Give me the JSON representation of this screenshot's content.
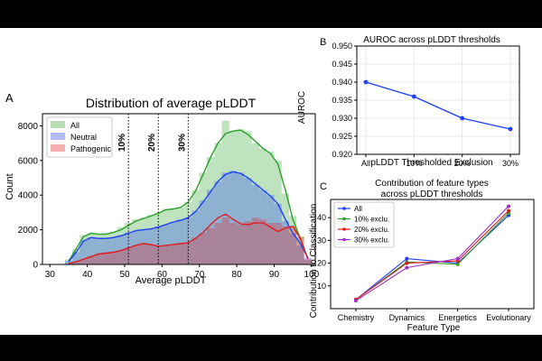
{
  "figure": {
    "panel_a": {
      "letter": "A",
      "chart_data": {
        "type": "bar",
        "title": "Distribution of average pLDDT",
        "xlabel": "Average pLDDT",
        "ylabel": "Count",
        "xlim": [
          28,
          101
        ],
        "ylim": [
          0,
          8700
        ],
        "xticks": [
          30,
          40,
          50,
          60,
          70,
          80,
          90,
          100
        ],
        "yticks": [
          0,
          2000,
          4000,
          6000,
          8000
        ],
        "bin_width": 2,
        "bin_starts": [
          34,
          36,
          38,
          40,
          42,
          44,
          46,
          48,
          50,
          52,
          54,
          56,
          58,
          60,
          62,
          64,
          66,
          68,
          70,
          72,
          74,
          76,
          78,
          80,
          82,
          84,
          86,
          88,
          90,
          92,
          94,
          96,
          98
        ],
        "series": [
          {
            "name": "All",
            "color": "#2ca02c",
            "hist": [
              300,
              900,
              1700,
              1800,
              1750,
              1800,
              1900,
              2150,
              2400,
              2600,
              2700,
              2850,
              3000,
              3200,
              3250,
              3300,
              3600,
              4300,
              5300,
              6200,
              7000,
              8300,
              7700,
              7800,
              7700,
              7000,
              6700,
              6500,
              6000,
              4100,
              2800,
              1600,
              250
            ],
            "kde": [
              200,
              900,
              1600,
              1800,
              1750,
              1750,
              1850,
              2000,
              2250,
              2500,
              2650,
              2800,
              2950,
              3150,
              3200,
              3300,
              3600,
              4250,
              5200,
              6200,
              7000,
              7550,
              7700,
              7750,
              7500,
              7100,
              6700,
              6400,
              5800,
              4300,
              2600,
              1500,
              350
            ]
          },
          {
            "name": "Neutral",
            "color": "#1f3fff",
            "hist": [
              200,
              700,
              1400,
              1550,
              1500,
              1500,
              1550,
              1700,
              1850,
              1950,
              2000,
              2050,
              2200,
              2300,
              2450,
              2600,
              2700,
              3100,
              3700,
              4300,
              4800,
              5300,
              5400,
              5300,
              5000,
              4600,
              4300,
              4000,
              3500,
              2500,
              1800,
              1100,
              400
            ],
            "kde": [
              150,
              700,
              1350,
              1550,
              1500,
              1500,
              1550,
              1650,
              1800,
              1950,
              2000,
              2050,
              2150,
              2300,
              2450,
              2550,
              2700,
              3050,
              3600,
              4200,
              4800,
              5200,
              5350,
              5250,
              5000,
              4650,
              4300,
              3950,
              3500,
              2600,
              1800,
              1200,
              400
            ]
          },
          {
            "name": "Pathogenic",
            "color": "#e31a1c",
            "hist": [
              50,
              150,
              300,
              500,
              650,
              700,
              750,
              800,
              950,
              1100,
              1250,
              1150,
              1050,
              1100,
              1150,
              1200,
              1250,
              1550,
              1800,
              2100,
              2400,
              2700,
              2400,
              2300,
              2500,
              2700,
              2600,
              2400,
              2400,
              2200,
              2200,
              1600,
              300
            ],
            "kde": [
              50,
              150,
              300,
              450,
              600,
              650,
              700,
              800,
              950,
              1100,
              1200,
              1150,
              1050,
              1100,
              1150,
              1200,
              1250,
              1500,
              1850,
              2300,
              2700,
              2900,
              2600,
              2350,
              2300,
              2400,
              2400,
              2150,
              1900,
              2100,
              2200,
              1500,
              300
            ]
          }
        ],
        "annotations": [
          {
            "label": "10%",
            "x": 51
          },
          {
            "label": "20%",
            "x": 59
          },
          {
            "label": "30%",
            "x": 67
          }
        ],
        "legend": "top-left"
      }
    },
    "panel_b": {
      "letter": "B",
      "chart_data": {
        "type": "line",
        "title": "AUROC across pLDDT thresholds",
        "xlabel": "pLDDT Thresholded Exclusion",
        "ylabel": "AUROC",
        "categories": [
          "All",
          "10%",
          "20%",
          "30%"
        ],
        "values": [
          0.94,
          0.936,
          0.93,
          0.927
        ],
        "ylim": [
          0.92,
          0.95
        ],
        "yticks": [
          "0.920",
          "0.925",
          "0.930",
          "0.935",
          "0.940",
          "0.945",
          "0.950"
        ],
        "color": "#1f3fff"
      }
    },
    "panel_c": {
      "letter": "C",
      "chart_data": {
        "type": "line",
        "title": [
          "Contribution of feature types",
          "across pLDDT thresholds"
        ],
        "xlabel": "Feature Type",
        "ylabel": "Contribution to Classification",
        "categories": [
          "Chemistry",
          "Dynamics",
          "Energetics",
          "Evolutionary"
        ],
        "ylim": [
          0,
          48
        ],
        "yticks": [
          10,
          20,
          30,
          40
        ],
        "series": [
          {
            "name": "All",
            "color": "#1f3fff",
            "values": [
              4,
              22,
              20,
              41
            ]
          },
          {
            "name": "10% exclu.",
            "color": "#2ca02c",
            "values": [
              4,
              20.5,
              19.5,
              42
            ]
          },
          {
            "name": "20% exclu.",
            "color": "#e31a1c",
            "values": [
              4,
              20,
              21,
              43
            ]
          },
          {
            "name": "30% exclu.",
            "color": "#a02fc8",
            "values": [
              3.5,
              18,
              22,
              45
            ]
          }
        ],
        "legend": "top-left"
      }
    }
  }
}
